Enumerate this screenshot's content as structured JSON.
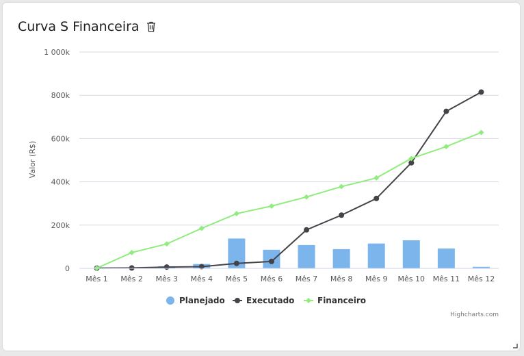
{
  "card": {
    "title": "Curva S Financeira",
    "delete_icon": "trash-icon"
  },
  "credits": "Highcharts.com",
  "colors": {
    "planejado": "#7cb5ec",
    "executado": "#434348",
    "financeiro": "#90ed7d",
    "grid": "#d8d8e6"
  },
  "chart_data": {
    "type": "bar",
    "title": "Curva S Financeira",
    "xlabel": "",
    "ylabel": "Valor (R$)",
    "ylim": [
      0,
      1000000
    ],
    "ytick_values": [
      0,
      200000,
      400000,
      600000,
      800000,
      1000000
    ],
    "ytick_labels": [
      "0",
      "200k",
      "400k",
      "600k",
      "800k",
      "1 000k"
    ],
    "categories": [
      "Mês 1",
      "Mês 2",
      "Mês 3",
      "Mês 4",
      "Mês 5",
      "Mês 6",
      "Mês 7",
      "Mês 8",
      "Mês 9",
      "Mês 10",
      "Mês 11",
      "Mês 12"
    ],
    "grid": true,
    "legend_position": "bottom-center",
    "series": [
      {
        "name": "Planejado",
        "type": "column",
        "values": [
          1000,
          2000,
          10000,
          20000,
          138000,
          86000,
          108000,
          89000,
          115000,
          130000,
          92000,
          7000
        ]
      },
      {
        "name": "Executado",
        "type": "line",
        "values": [
          1000,
          2000,
          6000,
          8000,
          23000,
          32000,
          178000,
          246000,
          323000,
          488000,
          726000,
          815000
        ]
      },
      {
        "name": "Financeiro",
        "type": "line",
        "values": [
          1000,
          73000,
          113000,
          185000,
          253000,
          288000,
          330000,
          378000,
          418000,
          508000,
          563000,
          628000
        ]
      }
    ]
  }
}
